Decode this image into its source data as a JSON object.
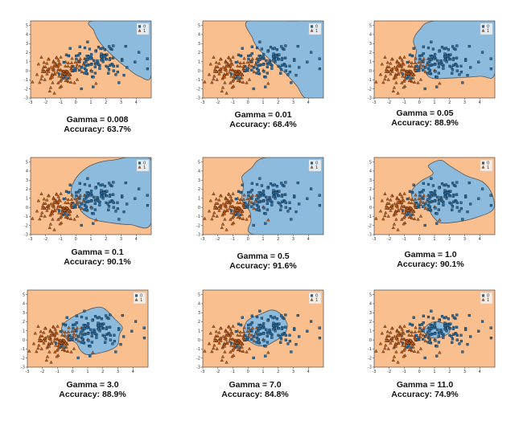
{
  "colors": {
    "class0_region": "#8dbbdd",
    "class1_region": "#f9bf8f",
    "class0_marker": "#2f6f9f",
    "class1_marker": "#c9621e",
    "boundary": "#555555"
  },
  "chart_data": [
    {
      "type": "scatter",
      "kind": "decision-region",
      "gamma_label": "Gamma = 0.008",
      "accuracy_label": "Accuracy: 63.7%",
      "gamma": 0.008,
      "accuracy": 63.7,
      "xlim": [
        -3,
        5
      ],
      "ylim": [
        -3,
        5.5
      ],
      "x_ticks": [
        "-3",
        "-2",
        "-1",
        "0",
        "1",
        "2",
        "3",
        "4"
      ],
      "y_ticks": [
        "-3",
        "-2",
        "-1",
        "0",
        "1",
        "2",
        "3",
        "4",
        "5"
      ],
      "legend": [
        "0",
        "1"
      ],
      "legend_position": "top-right",
      "grid": false
    },
    {
      "type": "scatter",
      "kind": "decision-region",
      "gamma_label": "Gamma = 0.01",
      "accuracy_label": "Accuracy: 68.4%",
      "gamma": 0.01,
      "accuracy": 68.4,
      "xlim": [
        -3,
        5
      ],
      "ylim": [
        -3,
        5.5
      ],
      "x_ticks": [
        "-3",
        "-2",
        "-1",
        "0",
        "1",
        "2",
        "3",
        "4"
      ],
      "y_ticks": [
        "-3",
        "-2",
        "-1",
        "0",
        "1",
        "2",
        "3",
        "4",
        "5"
      ],
      "legend": [
        "0",
        "1"
      ],
      "legend_position": "top-right",
      "grid": false
    },
    {
      "type": "scatter",
      "kind": "decision-region",
      "gamma_label": "Gamma = 0.05",
      "accuracy_label": "Accuracy: 88.9%",
      "gamma": 0.05,
      "accuracy": 88.9,
      "xlim": [
        -3,
        5
      ],
      "ylim": [
        -3,
        5.5
      ],
      "x_ticks": [
        "-3",
        "-2",
        "-1",
        "0",
        "1",
        "2",
        "3",
        "4"
      ],
      "y_ticks": [
        "-3",
        "-2",
        "-1",
        "0",
        "1",
        "2",
        "3",
        "4",
        "5"
      ],
      "legend": [
        "0",
        "1"
      ],
      "legend_position": "top-right",
      "grid": false
    },
    {
      "type": "scatter",
      "kind": "decision-region",
      "gamma_label": "Gamma = 0.1",
      "accuracy_label": "Accuracy: 90.1%",
      "gamma": 0.1,
      "accuracy": 90.1,
      "xlim": [
        -3,
        5
      ],
      "ylim": [
        -3,
        5.5
      ],
      "x_ticks": [
        "-3",
        "-2",
        "-1",
        "0",
        "1",
        "2",
        "3",
        "4"
      ],
      "y_ticks": [
        "-3",
        "-2",
        "-1",
        "0",
        "1",
        "2",
        "3",
        "4",
        "5"
      ],
      "legend": [
        "0",
        "1"
      ],
      "legend_position": "top-right",
      "grid": false
    },
    {
      "type": "scatter",
      "kind": "decision-region",
      "gamma_label": "Gamma = 0.5",
      "accuracy_label": "Accuracy: 91.6%",
      "gamma": 0.5,
      "accuracy": 91.6,
      "xlim": [
        -3,
        5
      ],
      "ylim": [
        -3,
        5.5
      ],
      "x_ticks": [
        "-3",
        "-2",
        "-1",
        "0",
        "1",
        "2",
        "3",
        "4"
      ],
      "y_ticks": [
        "-3",
        "-2",
        "-1",
        "0",
        "1",
        "2",
        "3",
        "4",
        "5"
      ],
      "legend": [
        "0",
        "1"
      ],
      "legend_position": "top-right",
      "grid": false
    },
    {
      "type": "scatter",
      "kind": "decision-region",
      "gamma_label": "Gamma = 1.0",
      "accuracy_label": "Accuracy: 90.1%",
      "gamma": 1.0,
      "accuracy": 90.1,
      "xlim": [
        -3,
        5
      ],
      "ylim": [
        -3,
        5.5
      ],
      "x_ticks": [
        "-3",
        "-2",
        "-1",
        "0",
        "1",
        "2",
        "3",
        "4"
      ],
      "y_ticks": [
        "-3",
        "-2",
        "-1",
        "0",
        "1",
        "2",
        "3",
        "4",
        "5"
      ],
      "legend": [
        "0",
        "1"
      ],
      "legend_position": "top-right",
      "grid": false
    },
    {
      "type": "scatter",
      "kind": "decision-region",
      "gamma_label": "Gamma = 3.0",
      "accuracy_label": "Accuracy: 88.9%",
      "gamma": 3.0,
      "accuracy": 88.9,
      "xlim": [
        -3,
        5
      ],
      "ylim": [
        -3,
        5.5
      ],
      "x_ticks": [
        "-3",
        "-2",
        "-1",
        "0",
        "1",
        "2",
        "3",
        "4"
      ],
      "y_ticks": [
        "-3",
        "-2",
        "-1",
        "0",
        "1",
        "2",
        "3",
        "4",
        "5"
      ],
      "legend": [
        "0",
        "1"
      ],
      "legend_position": "top-right",
      "grid": false
    },
    {
      "type": "scatter",
      "kind": "decision-region",
      "gamma_label": "Gamma = 7.0",
      "accuracy_label": "Accuracy: 84.8%",
      "gamma": 7.0,
      "accuracy": 84.8,
      "xlim": [
        -3,
        5
      ],
      "ylim": [
        -3,
        5.5
      ],
      "x_ticks": [
        "-3",
        "-2",
        "-1",
        "0",
        "1",
        "2",
        "3",
        "4"
      ],
      "y_ticks": [
        "-3",
        "-2",
        "-1",
        "0",
        "1",
        "2",
        "3",
        "4",
        "5"
      ],
      "legend": [
        "0",
        "1"
      ],
      "legend_position": "top-right",
      "grid": false
    },
    {
      "type": "scatter",
      "kind": "decision-region",
      "gamma_label": "Gamma = 11.0",
      "accuracy_label": "Accuracy: 74.9%",
      "gamma": 11.0,
      "accuracy": 74.9,
      "xlim": [
        -3,
        5
      ],
      "ylim": [
        -3,
        5.5
      ],
      "x_ticks": [
        "-3",
        "-2",
        "-1",
        "0",
        "1",
        "2",
        "3",
        "4"
      ],
      "y_ticks": [
        "-3",
        "-2",
        "-1",
        "0",
        "1",
        "2",
        "3",
        "4",
        "5"
      ],
      "legend": [
        "0",
        "1"
      ],
      "legend_position": "top-right",
      "grid": false
    }
  ]
}
